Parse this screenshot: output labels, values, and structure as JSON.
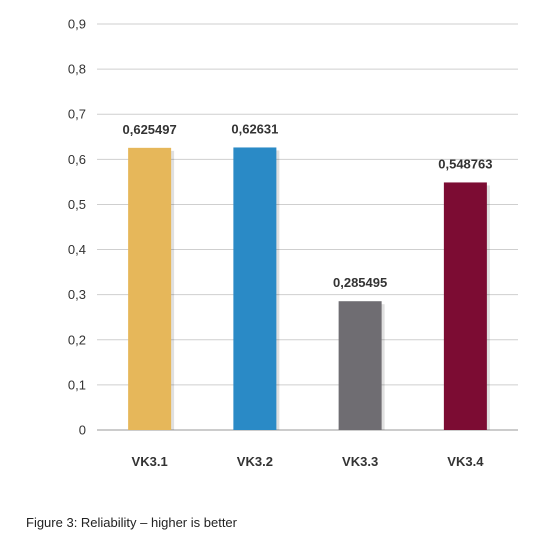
{
  "chart_data": {
    "type": "bar",
    "categories": [
      "VK3.1",
      "VK3.2",
      "VK3.3",
      "VK3.4"
    ],
    "values": [
      0.625497,
      0.62631,
      0.285495,
      0.548763
    ],
    "value_labels": [
      "0,625497",
      "0,62631",
      "0,285495",
      "0,548763"
    ],
    "colors": [
      "#E6B75A",
      "#2A8AC6",
      "#6F6D72",
      "#7C0C33"
    ],
    "ylim": [
      0,
      0.9
    ],
    "yticks": [
      0,
      0.1,
      0.2,
      0.3,
      0.4,
      0.5,
      0.6,
      0.7,
      0.8,
      0.9
    ],
    "ytick_labels": [
      "0",
      "0,1",
      "0,2",
      "0,3",
      "0,4",
      "0,5",
      "0,6",
      "0,7",
      "0,8",
      "0,9"
    ],
    "grid": true,
    "legend": "none"
  },
  "caption": "Figure 3: Reliability – higher is better"
}
